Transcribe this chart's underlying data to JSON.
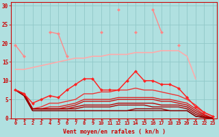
{
  "background_color": "#b0e0e0",
  "grid_color": "#90c8c8",
  "x_ticks": [
    0,
    1,
    2,
    3,
    4,
    5,
    6,
    7,
    8,
    9,
    10,
    11,
    12,
    13,
    14,
    15,
    16,
    17,
    18,
    19,
    20,
    21,
    22,
    23
  ],
  "xlabel": "Vent moyen/en rafales ( kn/h )",
  "ylim": [
    0,
    31
  ],
  "yticks": [
    0,
    5,
    10,
    15,
    20,
    25,
    30
  ],
  "series": [
    {
      "y": [
        19.5,
        16.5,
        null,
        null,
        23,
        22.5,
        16.5,
        null,
        null,
        null,
        23,
        null,
        29,
        null,
        23,
        null,
        29,
        23,
        null,
        19.5,
        null,
        null,
        null,
        null
      ],
      "color": "#ff8888",
      "lw": 1.0,
      "marker": "D",
      "ms": 2.0,
      "zorder": 5
    },
    {
      "y": [
        13,
        13,
        13.5,
        14,
        14.5,
        15,
        15.5,
        16,
        16,
        16.5,
        16.5,
        17,
        17,
        17,
        17.5,
        17.5,
        17.5,
        18,
        18,
        18,
        16.5,
        10.5,
        null,
        null
      ],
      "color": "#ffaaaa",
      "lw": 1.2,
      "marker": null,
      "ms": 0,
      "zorder": 3
    },
    {
      "y": [
        7.5,
        6.5,
        4.0,
        5.0,
        6.0,
        5.5,
        7.5,
        9.0,
        10.5,
        10.5,
        7.5,
        7.5,
        7.5,
        10.0,
        12.5,
        10.0,
        10.0,
        9.0,
        9.0,
        8.0,
        5.5,
        3.0,
        1.5,
        0.5
      ],
      "color": "#ff2222",
      "lw": 1.1,
      "marker": "D",
      "ms": 2.0,
      "zorder": 5
    },
    {
      "y": [
        7.5,
        6.5,
        2.5,
        3.0,
        4.0,
        4.0,
        4.5,
        5.0,
        6.5,
        6.5,
        7.0,
        7.0,
        7.5,
        7.5,
        8.0,
        7.5,
        7.5,
        7.0,
        6.5,
        6.0,
        5.0,
        3.5,
        1.5,
        0.5
      ],
      "color": "#ee3333",
      "lw": 1.0,
      "marker": null,
      "ms": 0,
      "zorder": 4
    },
    {
      "y": [
        7.5,
        6.5,
        2.5,
        2.5,
        3.0,
        3.0,
        3.5,
        4.0,
        5.0,
        5.0,
        5.0,
        5.0,
        5.5,
        5.5,
        5.5,
        5.5,
        5.5,
        5.0,
        5.0,
        4.5,
        4.0,
        2.5,
        1.0,
        0.0
      ],
      "color": "#dd2222",
      "lw": 1.0,
      "marker": null,
      "ms": 0,
      "zorder": 4
    },
    {
      "y": [
        7.5,
        6.5,
        2.5,
        2.5,
        2.5,
        2.5,
        3.0,
        3.5,
        4.5,
        4.5,
        4.5,
        4.5,
        5.0,
        5.0,
        5.0,
        5.0,
        5.0,
        4.5,
        4.5,
        4.0,
        3.5,
        2.0,
        0.8,
        0.0
      ],
      "color": "#cc1111",
      "lw": 1.0,
      "marker": null,
      "ms": 0,
      "zorder": 4
    },
    {
      "y": [
        7.5,
        6.5,
        2.5,
        2.5,
        2.5,
        2.5,
        2.5,
        3.0,
        3.5,
        3.5,
        3.5,
        3.5,
        4.0,
        4.0,
        4.0,
        4.0,
        4.0,
        3.5,
        3.5,
        3.5,
        3.0,
        1.5,
        0.5,
        0.0
      ],
      "color": "#bb0000",
      "lw": 1.0,
      "marker": null,
      "ms": 0,
      "zorder": 4
    },
    {
      "y": [
        7.5,
        6.5,
        2.5,
        2.5,
        2.5,
        2.5,
        2.5,
        2.5,
        3.0,
        3.0,
        3.0,
        3.0,
        3.5,
        3.5,
        3.5,
        3.5,
        3.0,
        3.0,
        3.0,
        3.0,
        2.5,
        1.0,
        0.3,
        0.0
      ],
      "color": "#aa0000",
      "lw": 1.0,
      "marker": null,
      "ms": 0,
      "zorder": 4
    },
    {
      "y": [
        7.5,
        6.0,
        2.0,
        2.0,
        2.0,
        2.0,
        2.0,
        2.0,
        2.0,
        2.0,
        2.0,
        2.0,
        2.0,
        2.0,
        2.5,
        2.5,
        2.5,
        2.5,
        2.0,
        2.0,
        2.0,
        0.5,
        0.2,
        0.0
      ],
      "color": "#990000",
      "lw": 1.0,
      "marker": null,
      "ms": 0,
      "zorder": 4
    },
    {
      "y": [
        7.5,
        6.0,
        2.0,
        2.0,
        2.0,
        2.0,
        2.0,
        2.0,
        2.0,
        2.0,
        2.0,
        2.0,
        2.0,
        2.0,
        2.0,
        2.0,
        2.0,
        2.0,
        2.0,
        2.0,
        2.0,
        0.5,
        0.1,
        0.0
      ],
      "color": "#880000",
      "lw": 0.9,
      "marker": null,
      "ms": 0,
      "zorder": 4
    }
  ],
  "text_color": "#cc0000",
  "arrow_color": "#cc0000"
}
